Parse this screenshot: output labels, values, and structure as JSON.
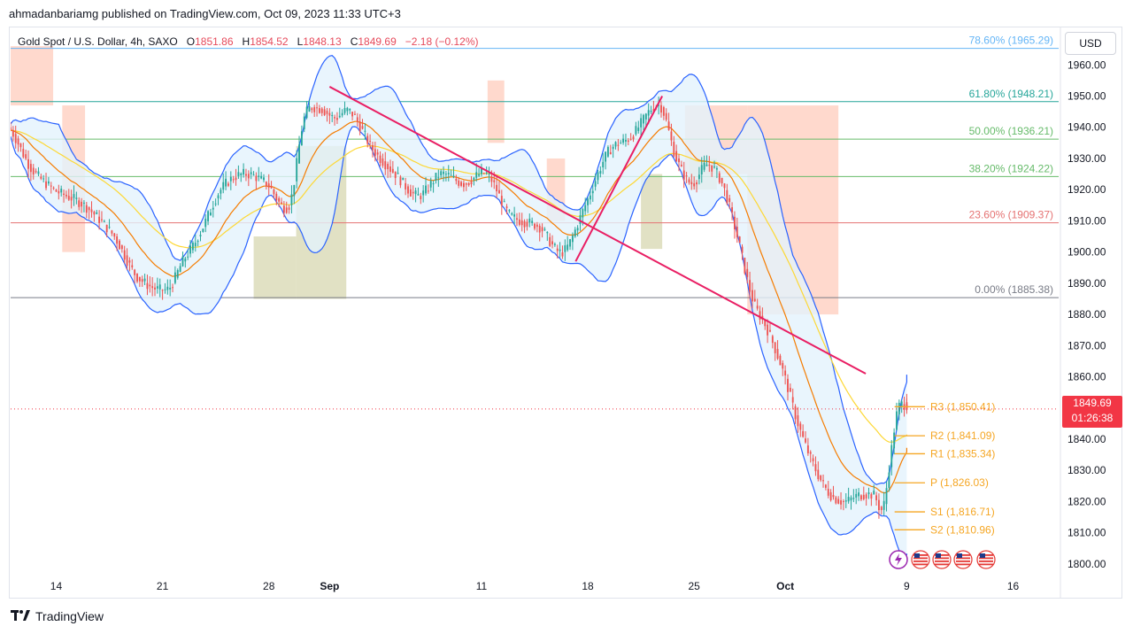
{
  "header": {
    "published": "ahmadanbariamg published on TradingView.com, Oct 09, 2023 11:33 UTC+3"
  },
  "legend": {
    "symbol": "Gold Spot / U.S. Dollar, 4h, SAXO",
    "o_label": "O",
    "o": "1851.86",
    "h_label": "H",
    "h": "1854.52",
    "l_label": "L",
    "l": "1848.13",
    "c_label": "C",
    "c": "1849.69",
    "change": "−2.18 (−0.12%)"
  },
  "currency": "USD",
  "last_price": {
    "value": "1849.69",
    "countdown": "01:26:38"
  },
  "footer": {
    "brand": "TradingView",
    "logo_icon": "tradingview-logo-icon"
  },
  "colors": {
    "up": "#26a69a",
    "down": "#ef5350",
    "bb": "#2962ff",
    "bb_fill": "#e3f2fd",
    "ema_fast": "#f57c00",
    "ema_slow": "#fdd835",
    "trend": "#e91e63",
    "pivot": "#f5a623",
    "box_orange": "#ffccbc",
    "box_olive": "#d7d7b0",
    "fib_red": "#e57373",
    "fib_green": "#66bb6a",
    "fib_teal": "#26a69a",
    "fib_grey": "#787b86",
    "fib_blue": "#64b5f6"
  },
  "chart_data": {
    "type": "candlestick",
    "symbol": "XAUUSD",
    "timeframe": "4h",
    "ylim": [
      1796,
      1972
    ],
    "y_ticks": [
      "1800.00",
      "1810.00",
      "1820.00",
      "1830.00",
      "1840.00",
      "1850.00",
      "1860.00",
      "1870.00",
      "1880.00",
      "1890.00",
      "1900.00",
      "1910.00",
      "1920.00",
      "1930.00",
      "1940.00",
      "1950.00",
      "1960.00"
    ],
    "x_ticks": [
      {
        "label": "14",
        "day": 14
      },
      {
        "label": "21",
        "day": 21
      },
      {
        "label": "28",
        "day": 28
      },
      {
        "label": "Sep",
        "day": 32
      },
      {
        "label": "11",
        "day": 42
      },
      {
        "label": "18",
        "day": 49
      },
      {
        "label": "25",
        "day": 56
      },
      {
        "label": "Oct",
        "day": 62
      },
      {
        "label": "9",
        "day": 70
      },
      {
        "label": "16",
        "day": 77
      }
    ],
    "fib_levels": [
      {
        "label": "78.60% (1965.29)",
        "value": 1965.29
      },
      {
        "label": "61.80% (1948.21)",
        "value": 1948.21
      },
      {
        "label": "50.00% (1936.21)",
        "value": 1936.21
      },
      {
        "label": "38.20% (1924.22)",
        "value": 1924.22
      },
      {
        "label": "23.60% (1909.37)",
        "value": 1909.37
      },
      {
        "label": "0.00% (1885.38)",
        "value": 1885.38
      }
    ],
    "pivots": [
      {
        "label": "R3 (1,850.41)",
        "value": 1850.41
      },
      {
        "label": "R2 (1,841.09)",
        "value": 1841.09
      },
      {
        "label": "R1 (1,835.34)",
        "value": 1835.34
      },
      {
        "label": "P (1,826.03)",
        "value": 1826.03
      },
      {
        "label": "S1 (1,816.71)",
        "value": 1816.71
      },
      {
        "label": "S2 (1,810.96)",
        "value": 1810.96
      }
    ],
    "trendlines": [
      {
        "from": [
          32,
          1953
        ],
        "to": [
          67.3,
          1861
        ]
      },
      {
        "from": [
          48.2,
          1897
        ],
        "to": [
          53.9,
          1950
        ]
      }
    ],
    "anchors": [
      [
        11.0,
        1940
      ],
      [
        12.5,
        1927
      ],
      [
        14.0,
        1920
      ],
      [
        16.0,
        1915
      ],
      [
        18.0,
        1905
      ],
      [
        19.5,
        1892
      ],
      [
        21.5,
        1888
      ],
      [
        22.5,
        1897
      ],
      [
        23.5,
        1905
      ],
      [
        25.0,
        1920
      ],
      [
        26.5,
        1925
      ],
      [
        28.0,
        1922
      ],
      [
        29.5,
        1915
      ],
      [
        30.5,
        1943
      ],
      [
        31.5,
        1946
      ],
      [
        32.5,
        1943
      ],
      [
        33.5,
        1945
      ],
      [
        35.0,
        1933
      ],
      [
        36.5,
        1925
      ],
      [
        38.0,
        1918
      ],
      [
        39.5,
        1925
      ],
      [
        41.0,
        1922
      ],
      [
        42.5,
        1925
      ],
      [
        44.0,
        1912
      ],
      [
        46.0,
        1908
      ],
      [
        47.5,
        1900
      ],
      [
        49.0,
        1915
      ],
      [
        50.5,
        1932
      ],
      [
        52.0,
        1937
      ],
      [
        53.9,
        1947
      ],
      [
        55.0,
        1930
      ],
      [
        56.0,
        1922
      ],
      [
        57.0,
        1928
      ],
      [
        58.0,
        1922
      ],
      [
        59.0,
        1905
      ],
      [
        60.0,
        1885
      ],
      [
        61.0,
        1875
      ],
      [
        62.0,
        1862
      ],
      [
        63.0,
        1845
      ],
      [
        64.0,
        1832
      ],
      [
        65.0,
        1823
      ],
      [
        66.0,
        1820
      ],
      [
        67.0,
        1822
      ],
      [
        68.0,
        1822
      ],
      [
        68.6,
        1818
      ],
      [
        69.2,
        1838
      ],
      [
        69.6,
        1850
      ],
      [
        70.2,
        1851
      ]
    ]
  }
}
